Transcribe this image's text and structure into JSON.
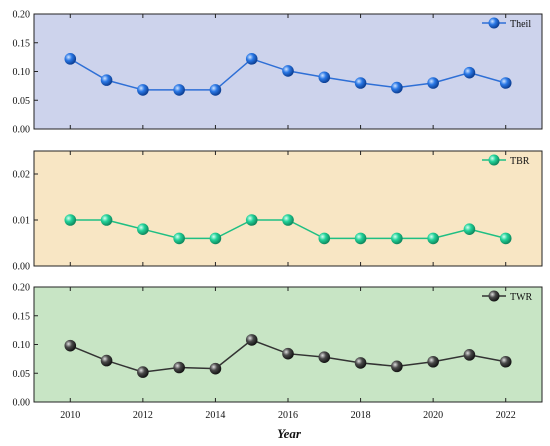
{
  "chart_data": {
    "type": "line",
    "xlabel": "Year",
    "x": [
      2010,
      2011,
      2012,
      2013,
      2014,
      2015,
      2016,
      2017,
      2018,
      2019,
      2020,
      2021,
      2022
    ],
    "xticks": [
      "2010",
      "2012",
      "2014",
      "2016",
      "2018",
      "2020",
      "2022"
    ],
    "panels": [
      {
        "series": [
          {
            "name": "Theil",
            "values": [
              0.122,
              0.085,
              0.068,
              0.068,
              0.068,
              0.122,
              0.101,
              0.09,
              0.08,
              0.072,
              0.08,
              0.098,
              0.08
            ]
          }
        ],
        "ylim": [
          0,
          0.2
        ],
        "yticks": [
          "0.00",
          "0.05",
          "0.10",
          "0.15",
          "0.20"
        ],
        "background": "#cdd3ec",
        "line_color": "#2e6fd6",
        "marker_color": "#2a78e6",
        "legend_position": "top-right"
      },
      {
        "series": [
          {
            "name": "TBR",
            "values": [
              0.01,
              0.01,
              0.008,
              0.006,
              0.006,
              0.01,
              0.01,
              0.006,
              0.006,
              0.006,
              0.006,
              0.008,
              0.006
            ]
          }
        ],
        "ylim": [
          0,
          0.025
        ],
        "yticks": [
          "0.00",
          "0.01",
          "0.02"
        ],
        "background": "#f8e6c4",
        "line_color": "#1fbf83",
        "marker_color": "#22d39a",
        "legend_position": "top-right"
      },
      {
        "series": [
          {
            "name": "TWR",
            "values": [
              0.098,
              0.072,
              0.052,
              0.06,
              0.058,
              0.108,
              0.084,
              0.078,
              0.068,
              0.062,
              0.07,
              0.082,
              0.07
            ]
          }
        ],
        "ylim": [
          0,
          0.2
        ],
        "yticks": [
          "0.00",
          "0.05",
          "0.10",
          "0.15",
          "0.20"
        ],
        "background": "#c8e5c5",
        "line_color": "#333333",
        "marker_color": "#4a4a4a",
        "legend_position": "top-right"
      }
    ]
  }
}
